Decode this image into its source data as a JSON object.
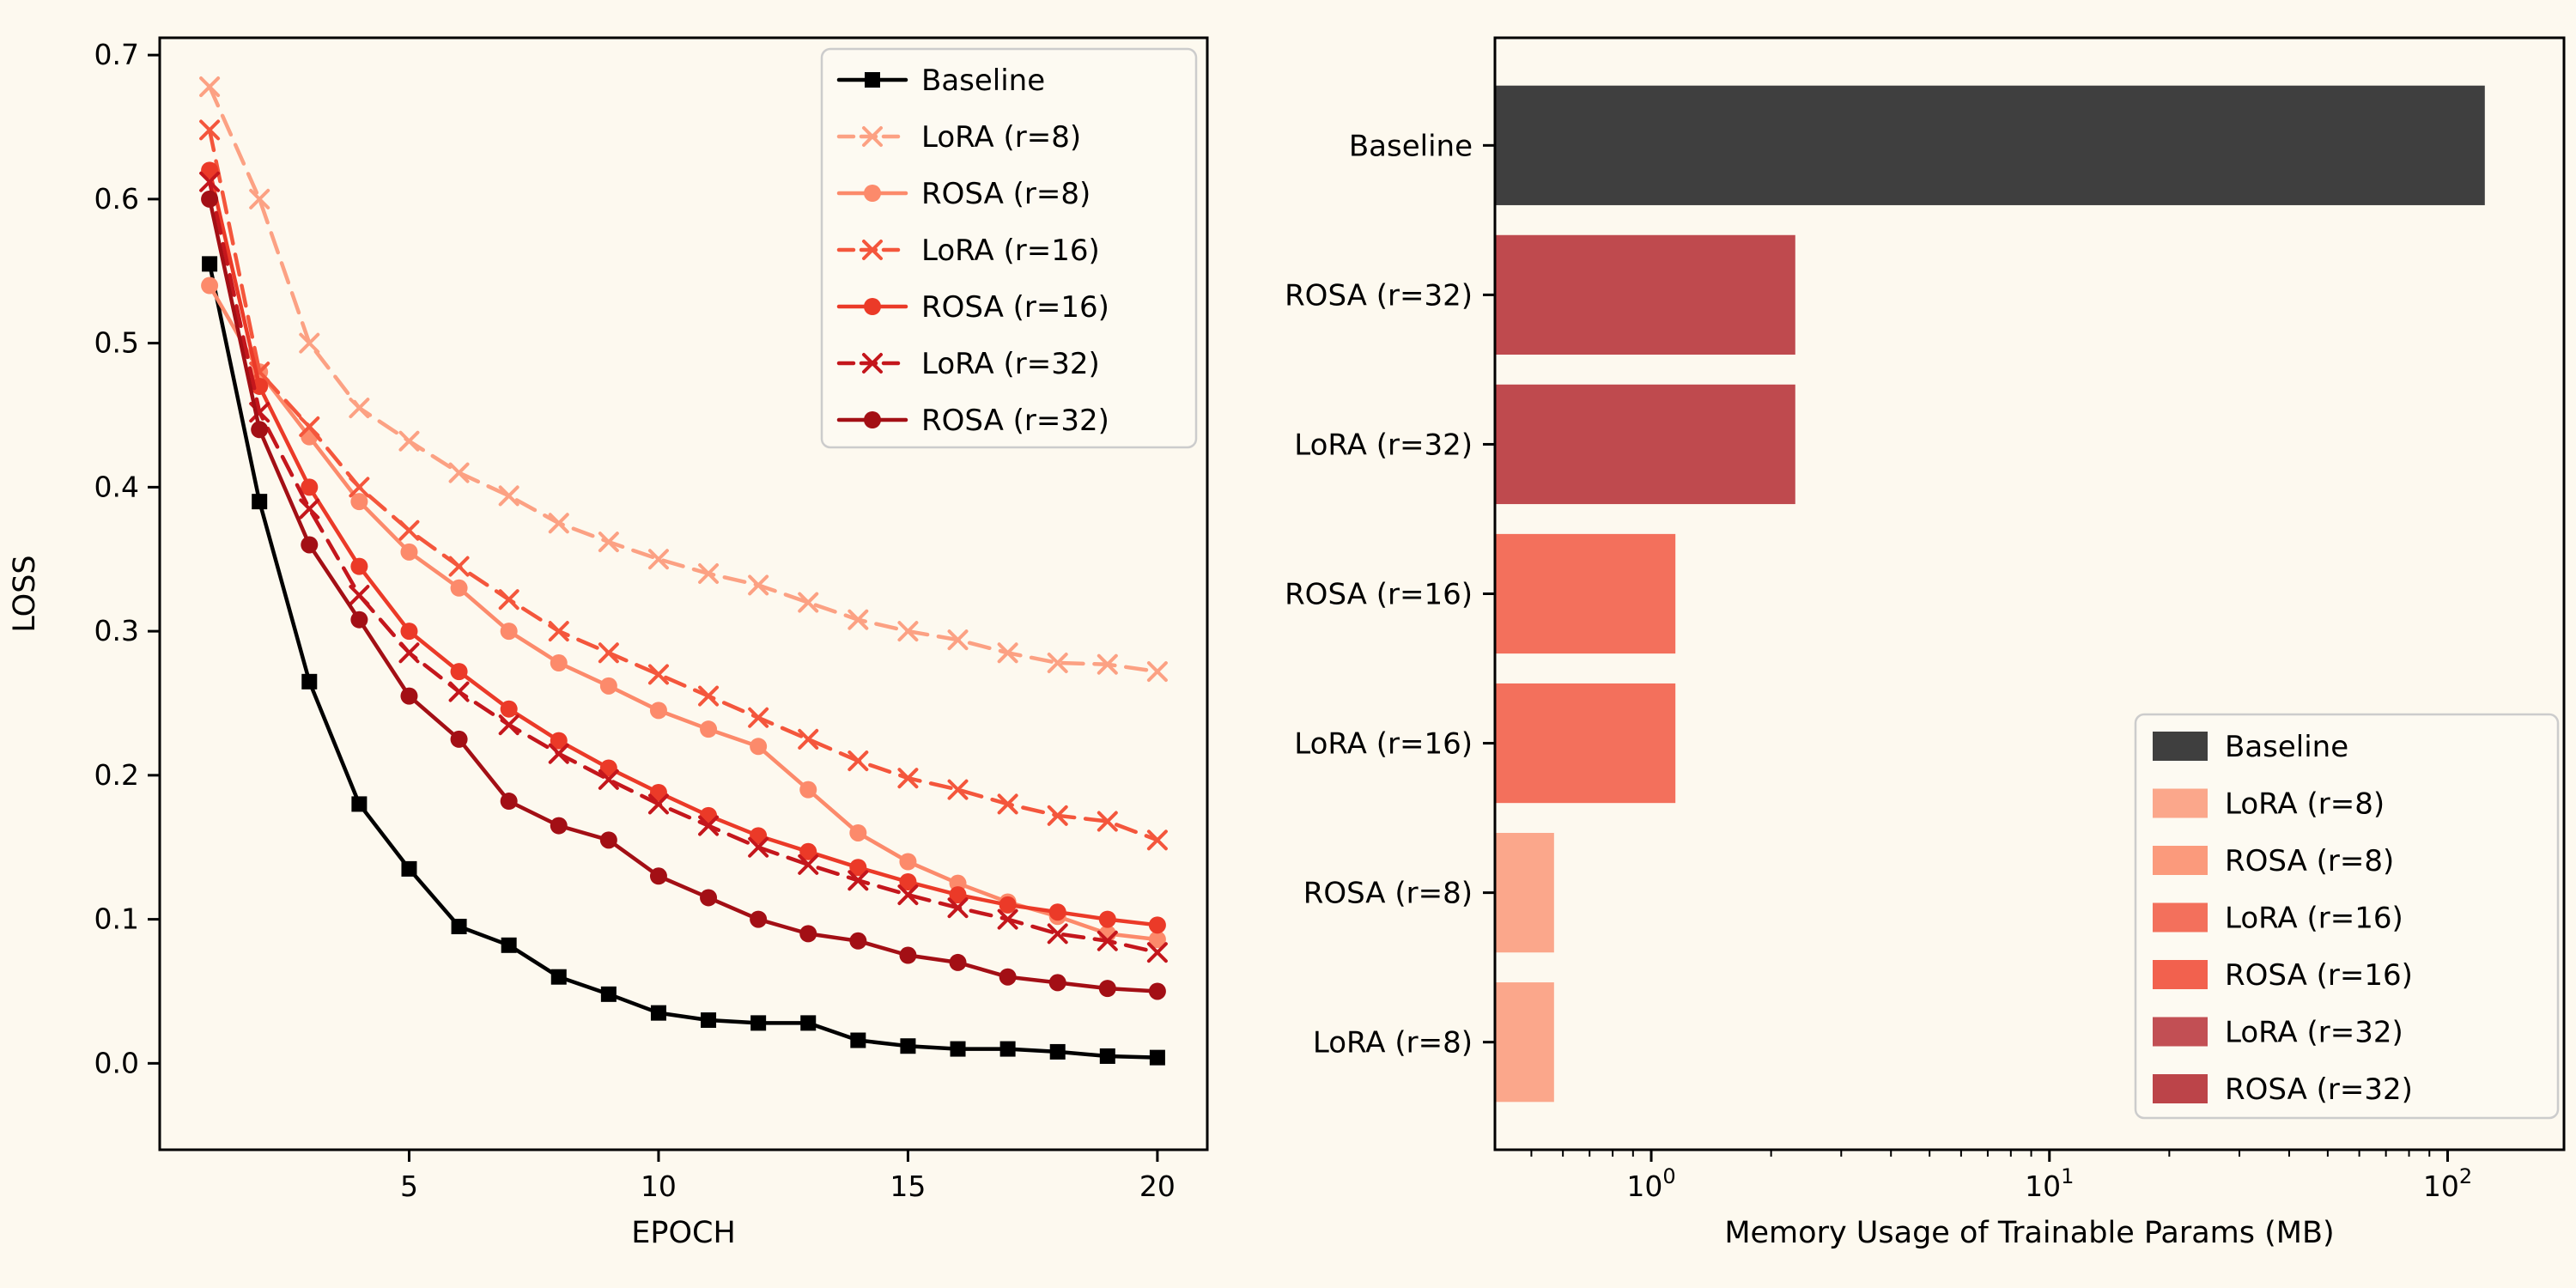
{
  "figure": {
    "background_color": "#fdf9ef",
    "text_color": "#000000",
    "spine_color": "#000000",
    "legend_border_color": "#cccccc",
    "legend_fill_color": "#fdfaf2"
  },
  "chart_data": [
    {
      "type": "line",
      "id": "loss-curves",
      "title": "",
      "xlabel": "EPOCH",
      "ylabel": "LOSS",
      "xlim": [
        0,
        21
      ],
      "ylim": [
        -0.06,
        0.712
      ],
      "grid": false,
      "legend_position": "upper right",
      "xticks": [
        5,
        10,
        15,
        20
      ],
      "xtick_labels": [
        "5",
        "10",
        "15",
        "20"
      ],
      "yticks": [
        0.0,
        0.1,
        0.2,
        0.3,
        0.4,
        0.5,
        0.6,
        0.7
      ],
      "ytick_labels": [
        "0.0",
        "0.1",
        "0.2",
        "0.3",
        "0.4",
        "0.5",
        "0.6",
        "0.7"
      ],
      "x": [
        1,
        2,
        3,
        4,
        5,
        6,
        7,
        8,
        9,
        10,
        11,
        12,
        13,
        14,
        15,
        16,
        17,
        18,
        19,
        20
      ],
      "series": [
        {
          "name": "Baseline",
          "color": "#000000",
          "linestyle": "solid",
          "marker": "square",
          "values": [
            0.555,
            0.39,
            0.265,
            0.18,
            0.135,
            0.095,
            0.082,
            0.06,
            0.048,
            0.035,
            0.03,
            0.028,
            0.028,
            0.016,
            0.012,
            0.01,
            0.01,
            0.008,
            0.005,
            0.004
          ]
        },
        {
          "name": "LoRA (r=8)",
          "color": "#fca183",
          "linestyle": "dashed",
          "marker": "x",
          "values": [
            0.678,
            0.6,
            0.5,
            0.455,
            0.432,
            0.41,
            0.394,
            0.375,
            0.362,
            0.35,
            0.34,
            0.332,
            0.32,
            0.308,
            0.3,
            0.294,
            0.285,
            0.278,
            0.277,
            0.272
          ]
        },
        {
          "name": "ROSA (r=8)",
          "color": "#fc8a6b",
          "linestyle": "solid",
          "marker": "circle",
          "values": [
            0.54,
            0.48,
            0.435,
            0.39,
            0.355,
            0.33,
            0.3,
            0.278,
            0.262,
            0.245,
            0.232,
            0.22,
            0.19,
            0.16,
            0.14,
            0.125,
            0.112,
            0.102,
            0.09,
            0.086
          ]
        },
        {
          "name": "LoRA (r=16)",
          "color": "#f4563c",
          "linestyle": "dashed",
          "marker": "x",
          "values": [
            0.648,
            0.48,
            0.442,
            0.4,
            0.37,
            0.345,
            0.322,
            0.3,
            0.285,
            0.27,
            0.255,
            0.24,
            0.225,
            0.21,
            0.198,
            0.19,
            0.18,
            0.172,
            0.168,
            0.155
          ]
        },
        {
          "name": "ROSA (r=16)",
          "color": "#eb3a28",
          "linestyle": "solid",
          "marker": "circle",
          "values": [
            0.62,
            0.47,
            0.4,
            0.345,
            0.3,
            0.272,
            0.246,
            0.224,
            0.205,
            0.188,
            0.172,
            0.158,
            0.147,
            0.136,
            0.126,
            0.117,
            0.11,
            0.105,
            0.1,
            0.096
          ]
        },
        {
          "name": "LoRA (r=32)",
          "color": "#c4161c",
          "linestyle": "dashed",
          "marker": "x",
          "values": [
            0.612,
            0.452,
            0.385,
            0.325,
            0.285,
            0.258,
            0.235,
            0.215,
            0.197,
            0.18,
            0.165,
            0.15,
            0.138,
            0.127,
            0.117,
            0.108,
            0.1,
            0.09,
            0.085,
            0.077
          ]
        },
        {
          "name": "ROSA (r=32)",
          "color": "#a30f15",
          "linestyle": "solid",
          "marker": "circle",
          "values": [
            0.6,
            0.44,
            0.36,
            0.308,
            0.255,
            0.225,
            0.182,
            0.165,
            0.155,
            0.13,
            0.115,
            0.1,
            0.09,
            0.085,
            0.075,
            0.07,
            0.06,
            0.056,
            0.052,
            0.05
          ]
        }
      ]
    },
    {
      "type": "bar",
      "id": "memory-usage",
      "orientation": "horizontal",
      "xscale": "log",
      "title": "",
      "xlabel": "Memory Usage of Trainable Params (MB)",
      "xlim": [
        0.405,
        196
      ],
      "xticks": [
        {
          "value": 1,
          "base": "10",
          "exp": "0"
        },
        {
          "value": 10,
          "base": "10",
          "exp": "1"
        },
        {
          "value": 100,
          "base": "10",
          "exp": "2"
        }
      ],
      "categories": [
        "Baseline",
        "ROSA (r=32)",
        "LoRA (r=32)",
        "ROSA (r=16)",
        "LoRA (r=16)",
        "ROSA (r=8)",
        "LoRA (r=8)"
      ],
      "values": [
        124,
        2.3,
        2.3,
        1.15,
        1.15,
        0.57,
        0.57
      ],
      "bar_colors": [
        "#3f3f3f",
        "#bf4a4e",
        "#bf4a4e",
        "#f3705c",
        "#f3705c",
        "#fba78b",
        "#fba78b"
      ],
      "legend_position": "lower right",
      "legend": [
        {
          "label": "Baseline",
          "color": "#3f3f3f"
        },
        {
          "label": "LoRA (r=8)",
          "color": "#fba78b"
        },
        {
          "label": "ROSA (r=8)",
          "color": "#fb9a7c"
        },
        {
          "label": "LoRA (r=16)",
          "color": "#f3705c"
        },
        {
          "label": "ROSA (r=16)",
          "color": "#f2614e"
        },
        {
          "label": "LoRA (r=32)",
          "color": "#c24f54"
        },
        {
          "label": "ROSA (r=32)",
          "color": "#bc4449"
        }
      ]
    }
  ]
}
